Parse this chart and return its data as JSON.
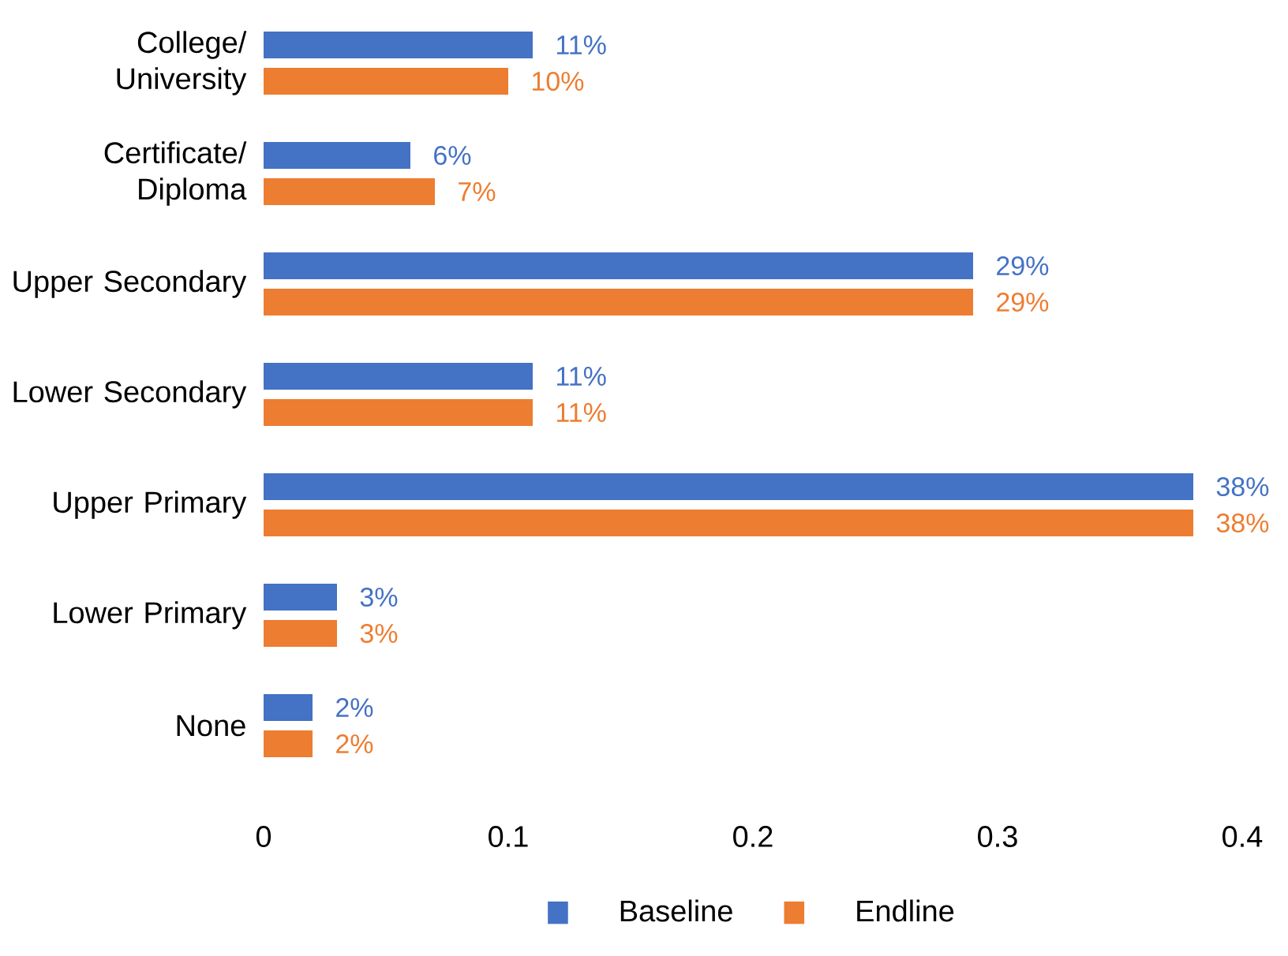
{
  "chart_data": {
    "type": "bar",
    "orientation": "horizontal",
    "categories": [
      "College/ University",
      "Certificate/ Diploma",
      "Upper Secondary",
      "Lower Secondary",
      "Upper Primary",
      "Lower Primary",
      "None"
    ],
    "series": [
      {
        "name": "Baseline",
        "color": "#4472c4",
        "values": [
          0.11,
          0.06,
          0.29,
          0.11,
          0.38,
          0.03,
          0.02
        ],
        "value_labels": [
          "11%",
          "6%",
          "29%",
          "11%",
          "38%",
          "3%",
          "2%"
        ]
      },
      {
        "name": "Endline",
        "color": "#ed7d31",
        "values": [
          0.1,
          0.07,
          0.29,
          0.11,
          0.38,
          0.03,
          0.02
        ],
        "value_labels": [
          "10%",
          "7%",
          "29%",
          "11%",
          "38%",
          "3%",
          "2%"
        ]
      }
    ],
    "xlim": [
      0,
      0.4
    ],
    "xticks": [
      0,
      0.1,
      0.2,
      0.3,
      0.4
    ],
    "legend": "bottom"
  }
}
